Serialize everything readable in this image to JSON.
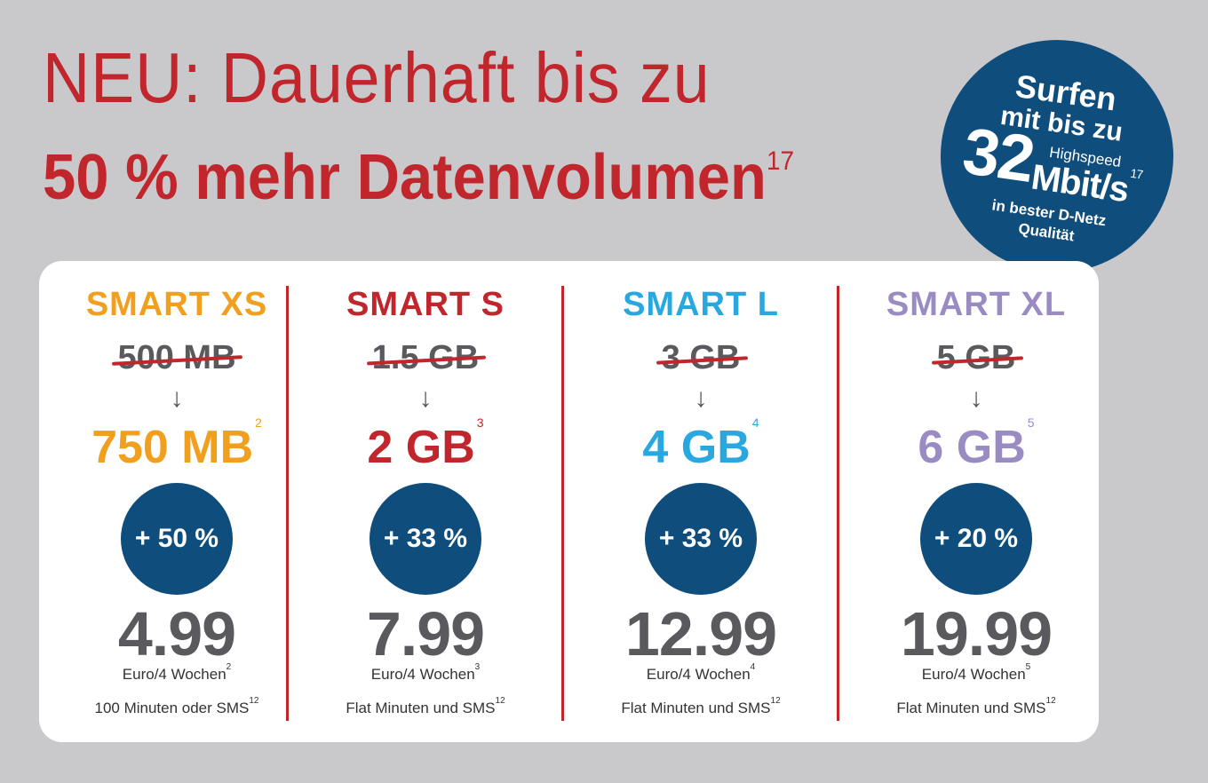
{
  "headline": {
    "line1": "NEU: Dauerhaft bis zu",
    "line2": "50 % mehr Datenvolumen",
    "line2_sup": "17"
  },
  "badge": {
    "line1": "Surfen",
    "line2": "mit bis zu",
    "speed_value": "32",
    "speed_label": "Highspeed",
    "speed_unit": "Mbit/s",
    "speed_sup": "17",
    "line5": "in bester D-Netz",
    "line6": "Qualität"
  },
  "colors": {
    "headline": "#c0262c",
    "badge": "#0f4d7c",
    "xs": "#f0a01e",
    "s": "#c0262c",
    "l": "#29a8df",
    "xl": "#9a8bc3"
  },
  "plans": [
    {
      "name": "SMART XS",
      "old": "500 MB",
      "arrow": "↓",
      "new": "750 MB",
      "new_sup": "2",
      "bonus": "+ 50 %",
      "price": "4.99",
      "per": "Euro/4 Wochen",
      "per_sup": "2",
      "feature": "100 Minuten oder SMS",
      "feature_sup": "12"
    },
    {
      "name": "SMART S",
      "old": "1.5 GB",
      "arrow": "↓",
      "new": "2 GB",
      "new_sup": "3",
      "bonus": "+ 33 %",
      "price": "7.99",
      "per": "Euro/4 Wochen",
      "per_sup": "3",
      "feature": "Flat Minuten und SMS",
      "feature_sup": "12"
    },
    {
      "name": "SMART L",
      "old": "3 GB",
      "arrow": "↓",
      "new": "4 GB",
      "new_sup": "4",
      "bonus": "+ 33 %",
      "price": "12.99",
      "per": "Euro/4 Wochen",
      "per_sup": "4",
      "feature": "Flat Minuten und SMS",
      "feature_sup": "12"
    },
    {
      "name": "SMART XL",
      "old": "5 GB",
      "arrow": "↓",
      "new": "6 GB",
      "new_sup": "5",
      "bonus": "+ 20 %",
      "price": "19.99",
      "per": "Euro/4 Wochen",
      "per_sup": "5",
      "feature": "Flat Minuten und SMS",
      "feature_sup": "12"
    }
  ]
}
